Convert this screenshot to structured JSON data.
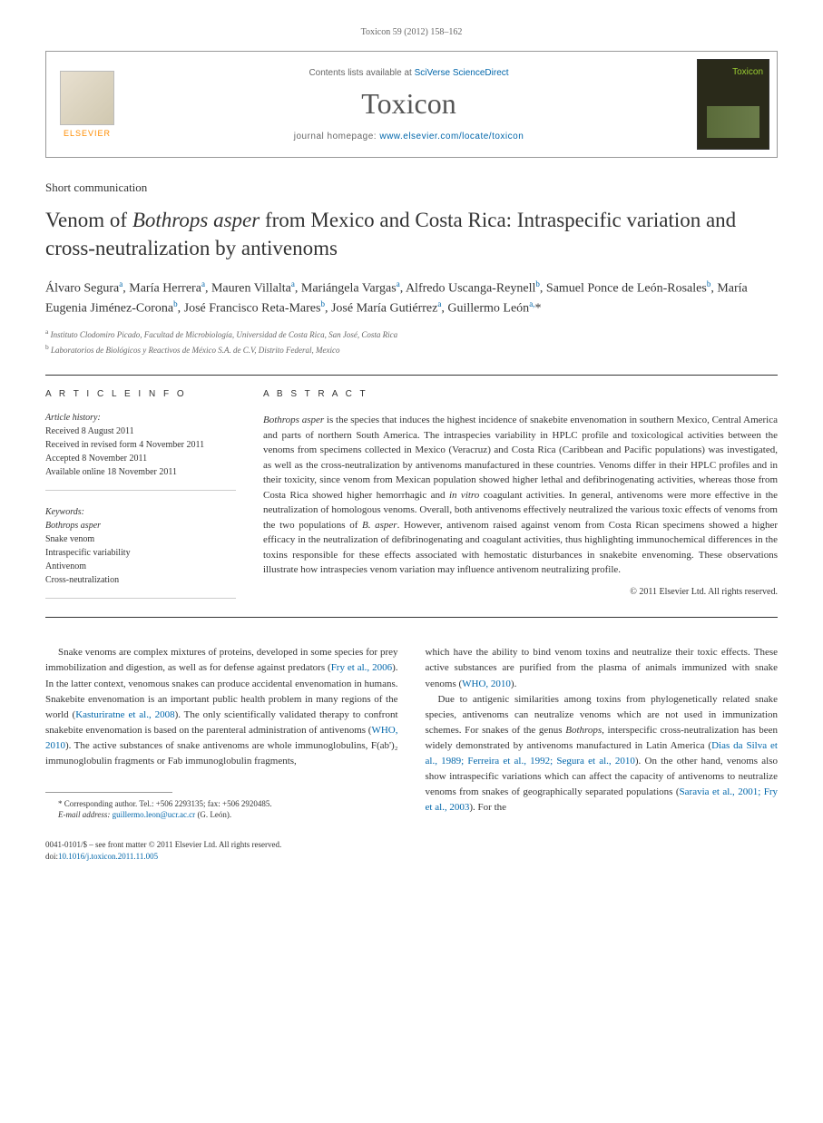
{
  "journal_ref": "Toxicon 59 (2012) 158–162",
  "header": {
    "contents_prefix": "Contents lists available at ",
    "contents_link": "SciVerse ScienceDirect",
    "journal_name": "Toxicon",
    "homepage_prefix": "journal homepage: ",
    "homepage_link": "www.elsevier.com/locate/toxicon",
    "elsevier": "ELSEVIER",
    "cover_title": "Toxicon"
  },
  "article_type": "Short communication",
  "title_pre": "Venom of ",
  "title_em": "Bothrops asper",
  "title_post": " from Mexico and Costa Rica: Intraspecific variation and cross-neutralization by antivenoms",
  "authors_html": "Álvaro Segura<sup>a</sup>, María Herrera<sup>a</sup>, Mauren Villalta<sup>a</sup>, Mariángela Vargas<sup>a</sup>, Alfredo Uscanga-Reynell<sup>b</sup>, Samuel Ponce de León-Rosales<sup>b</sup>, María Eugenia Jiménez-Corona<sup>b</sup>, José Francisco Reta-Mares<sup>b</sup>, José María Gutiérrez<sup>a</sup>, Guillermo León<sup>a,</sup>*",
  "affiliations": {
    "a": "Instituto Clodomiro Picado, Facultad de Microbiología, Universidad de Costa Rica, San José, Costa Rica",
    "b": "Laboratorios de Biológicos y Reactivos de México S.A. de C.V, Distrito Federal, Mexico"
  },
  "info": {
    "heading": "A R T I C L E   I N F O",
    "history_heading": "Article history:",
    "history": [
      "Received 8 August 2011",
      "Received in revised form 4 November 2011",
      "Accepted 8 November 2011",
      "Available online 18 November 2011"
    ],
    "keywords_heading": "Keywords:",
    "keywords": [
      "Bothrops asper",
      "Snake venom",
      "Intraspecific variability",
      "Antivenom",
      "Cross-neutralization"
    ]
  },
  "abstract": {
    "heading": "A B S T R A C T",
    "text_parts": [
      {
        "em": true,
        "t": "Bothrops asper"
      },
      {
        "em": false,
        "t": " is the species that induces the highest incidence of snakebite envenomation in southern Mexico, Central America and parts of northern South America. The intraspecies variability in HPLC profile and toxicological activities between the venoms from specimens collected in Mexico (Veracruz) and Costa Rica (Caribbean and Pacific populations) was investigated, as well as the cross-neutralization by antivenoms manufactured in these countries. Venoms differ in their HPLC profiles and in their toxicity, since venom from Mexican population showed higher lethal and defibrinogenating activities, whereas those from Costa Rica showed higher hemorrhagic and "
      },
      {
        "em": true,
        "t": "in vitro"
      },
      {
        "em": false,
        "t": " coagulant activities. In general, antivenoms were more effective in the neutralization of homologous venoms. Overall, both antivenoms effectively neutralized the various toxic effects of venoms from the two populations of "
      },
      {
        "em": true,
        "t": "B. asper"
      },
      {
        "em": false,
        "t": ". However, antivenom raised against venom from Costa Rican specimens showed a higher efficacy in the neutralization of defibrinogenating and coagulant activities, thus highlighting immunochemical differences in the toxins responsible for these effects associated with hemostatic disturbances in snakebite envenoming. These observations illustrate how intraspecies venom variation may influence antivenom neutralizing profile."
      }
    ],
    "copyright": "© 2011 Elsevier Ltd. All rights reserved."
  },
  "body": {
    "col1_parts": [
      {
        "t": "Snake venoms are complex mixtures of proteins, developed in some species for prey immobilization and digestion, as well as for defense against predators ("
      },
      {
        "link": true,
        "t": "Fry et al., 2006"
      },
      {
        "t": "). In the latter context, venomous snakes can produce accidental envenomation in humans. Snakebite envenomation is an important public health problem in many regions of the world ("
      },
      {
        "link": true,
        "t": "Kasturiratne et al., 2008"
      },
      {
        "t": "). The only scientifically validated therapy to confront snakebite envenomation is based on the parenteral administration of antivenoms ("
      },
      {
        "link": true,
        "t": "WHO, 2010"
      },
      {
        "t": "). The active substances of snake antivenoms are whole immunoglobulins, F(ab')₂ immunoglobulin fragments or Fab immunoglobulin fragments,"
      }
    ],
    "col2_parts": [
      {
        "t": "which have the ability to bind venom toxins and neutralize their toxic effects. These active substances are purified from the plasma of animals immunized with snake venoms ("
      },
      {
        "link": true,
        "t": "WHO, 2010"
      },
      {
        "t": ")."
      }
    ],
    "col2_p2_parts": [
      {
        "t": "Due to antigenic similarities among toxins from phylogenetically related snake species, antivenoms can neutralize venoms which are not used in immunization schemes. For snakes of the genus "
      },
      {
        "em": true,
        "t": "Bothrops"
      },
      {
        "t": ", interspecific cross-neutralization has been widely demonstrated by antivenoms manufactured in Latin America ("
      },
      {
        "link": true,
        "t": "Dias da Silva et al., 1989; Ferreira et al., 1992; Segura et al., 2010"
      },
      {
        "t": "). On the other hand, venoms also show intraspecific variations which can affect the capacity of antivenoms to neutralize venoms from snakes of geographically separated populations ("
      },
      {
        "link": true,
        "t": "Saravia et al., 2001; Fry et al., 2003"
      },
      {
        "t": "). For the"
      }
    ]
  },
  "footnote": {
    "corresponding": "* Corresponding author. Tel.: +506 2293135; fax: +506 2920485.",
    "email_label": "E-mail address:",
    "email": "guillermo.leon@ucr.ac.cr",
    "email_name": " (G. León)."
  },
  "footer": {
    "line1": "0041-0101/$ – see front matter © 2011 Elsevier Ltd. All rights reserved.",
    "doi_label": "doi:",
    "doi": "10.1016/j.toxicon.2011.11.005"
  }
}
